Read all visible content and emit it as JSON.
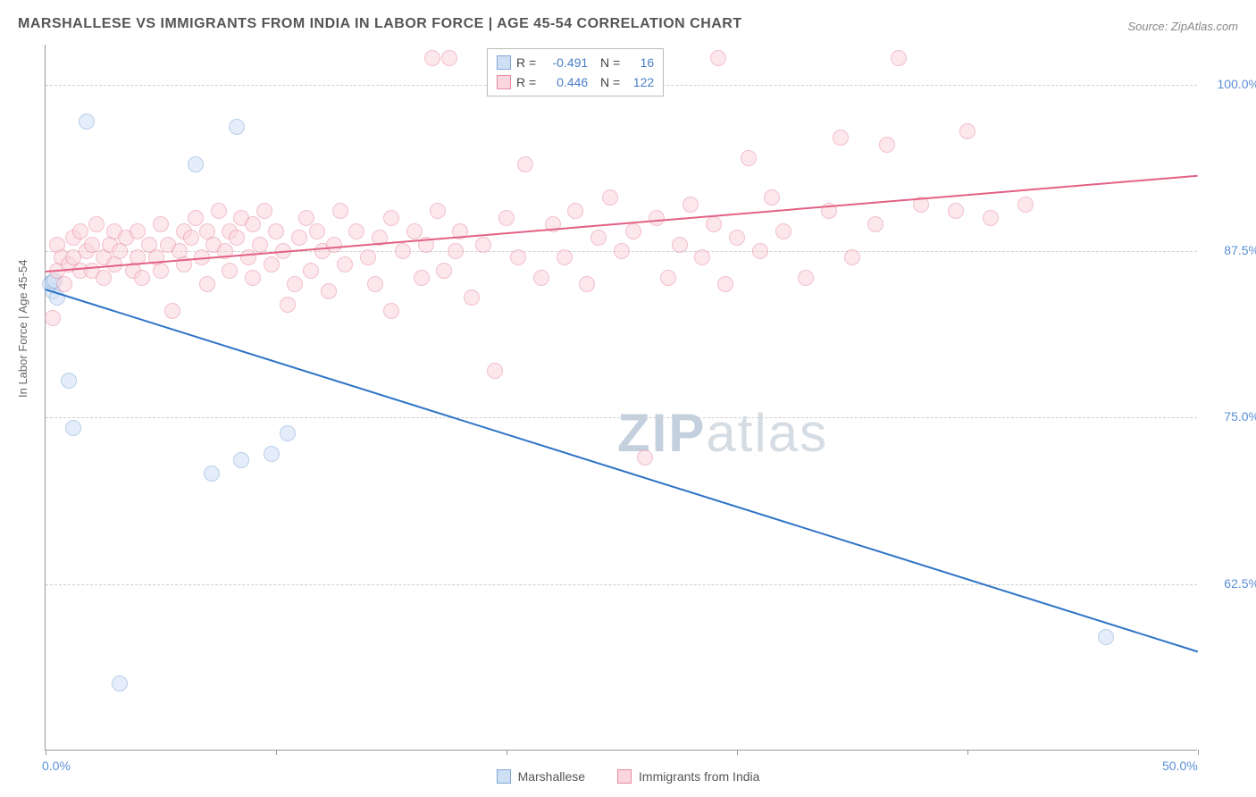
{
  "title": "MARSHALLESE VS IMMIGRANTS FROM INDIA IN LABOR FORCE | AGE 45-54 CORRELATION CHART",
  "source": "Source: ZipAtlas.com",
  "y_axis_title": "In Labor Force | Age 45-54",
  "watermark_bold": "ZIP",
  "watermark_light": "atlas",
  "chart": {
    "type": "scatter",
    "xlim": [
      0,
      50
    ],
    "ylim": [
      50,
      103
    ],
    "x_ticks": [
      0,
      10,
      20,
      30,
      40,
      50
    ],
    "x_tick_labels_shown": {
      "0": "0.0%",
      "50": "50.0%"
    },
    "y_ticks": [
      62.5,
      75.0,
      87.5,
      100.0
    ],
    "y_tick_labels": [
      "62.5%",
      "75.0%",
      "87.5%",
      "100.0%"
    ],
    "background_color": "#ffffff",
    "grid_color": "#d0d0d0",
    "point_radius": 9,
    "point_opacity": 0.55,
    "series": [
      {
        "name": "Marshallese",
        "color_fill": "#cfe0f5",
        "color_stroke": "#7fa8d8",
        "line_color": "#2f74c7",
        "R": "-0.491",
        "N": "16",
        "trend": {
          "x1": 0,
          "y1": 84.7,
          "x2": 50,
          "y2": 57.5
        },
        "points": [
          [
            0.2,
            85.0
          ],
          [
            0.3,
            84.5
          ],
          [
            0.3,
            85.2
          ],
          [
            0.5,
            84.0
          ],
          [
            1.8,
            97.2
          ],
          [
            1.0,
            77.8
          ],
          [
            1.2,
            74.2
          ],
          [
            3.2,
            55.0
          ],
          [
            6.5,
            94.0
          ],
          [
            8.3,
            96.8
          ],
          [
            8.5,
            71.8
          ],
          [
            9.8,
            72.3
          ],
          [
            10.5,
            73.8
          ],
          [
            7.2,
            70.8
          ],
          [
            46.0,
            58.5
          ],
          [
            0.4,
            85.3
          ]
        ]
      },
      {
        "name": "Immigrants from India",
        "color_fill": "#fbd5df",
        "color_stroke": "#e88ba3",
        "line_color": "#e26184",
        "R": "0.446",
        "N": "122",
        "trend": {
          "x1": 0,
          "y1": 86.0,
          "x2": 50,
          "y2": 93.2
        },
        "points": [
          [
            0.3,
            82.5
          ],
          [
            0.5,
            86.0
          ],
          [
            0.5,
            88.0
          ],
          [
            0.7,
            87.0
          ],
          [
            0.8,
            85.0
          ],
          [
            1.0,
            86.5
          ],
          [
            1.2,
            88.5
          ],
          [
            1.2,
            87.0
          ],
          [
            1.5,
            86.0
          ],
          [
            1.5,
            89.0
          ],
          [
            1.8,
            87.5
          ],
          [
            2.0,
            88.0
          ],
          [
            2.0,
            86.0
          ],
          [
            2.2,
            89.5
          ],
          [
            2.5,
            87.0
          ],
          [
            2.5,
            85.5
          ],
          [
            2.8,
            88.0
          ],
          [
            3.0,
            89.0
          ],
          [
            3.0,
            86.5
          ],
          [
            3.2,
            87.5
          ],
          [
            3.5,
            88.5
          ],
          [
            3.8,
            86.0
          ],
          [
            4.0,
            89.0
          ],
          [
            4.0,
            87.0
          ],
          [
            4.2,
            85.5
          ],
          [
            4.5,
            88.0
          ],
          [
            4.8,
            87.0
          ],
          [
            5.0,
            89.5
          ],
          [
            5.0,
            86.0
          ],
          [
            5.3,
            88.0
          ],
          [
            5.5,
            83.0
          ],
          [
            5.8,
            87.5
          ],
          [
            6.0,
            89.0
          ],
          [
            6.0,
            86.5
          ],
          [
            6.3,
            88.5
          ],
          [
            6.5,
            90.0
          ],
          [
            6.8,
            87.0
          ],
          [
            7.0,
            89.0
          ],
          [
            7.0,
            85.0
          ],
          [
            7.3,
            88.0
          ],
          [
            7.5,
            90.5
          ],
          [
            7.8,
            87.5
          ],
          [
            8.0,
            89.0
          ],
          [
            8.0,
            86.0
          ],
          [
            8.3,
            88.5
          ],
          [
            8.5,
            90.0
          ],
          [
            8.8,
            87.0
          ],
          [
            9.0,
            89.5
          ],
          [
            9.0,
            85.5
          ],
          [
            9.3,
            88.0
          ],
          [
            9.5,
            90.5
          ],
          [
            9.8,
            86.5
          ],
          [
            10.0,
            89.0
          ],
          [
            10.3,
            87.5
          ],
          [
            10.5,
            83.5
          ],
          [
            10.8,
            85.0
          ],
          [
            11.0,
            88.5
          ],
          [
            11.3,
            90.0
          ],
          [
            11.5,
            86.0
          ],
          [
            11.8,
            89.0
          ],
          [
            12.0,
            87.5
          ],
          [
            12.3,
            84.5
          ],
          [
            12.5,
            88.0
          ],
          [
            12.8,
            90.5
          ],
          [
            13.0,
            86.5
          ],
          [
            13.5,
            89.0
          ],
          [
            14.0,
            87.0
          ],
          [
            14.3,
            85.0
          ],
          [
            14.5,
            88.5
          ],
          [
            15.0,
            90.0
          ],
          [
            15.0,
            83.0
          ],
          [
            15.5,
            87.5
          ],
          [
            16.0,
            89.0
          ],
          [
            16.3,
            85.5
          ],
          [
            16.5,
            88.0
          ],
          [
            16.8,
            102.0
          ],
          [
            17.0,
            90.5
          ],
          [
            17.3,
            86.0
          ],
          [
            17.5,
            102.0
          ],
          [
            17.8,
            87.5
          ],
          [
            18.0,
            89.0
          ],
          [
            18.5,
            84.0
          ],
          [
            19.0,
            88.0
          ],
          [
            19.5,
            78.5
          ],
          [
            20.0,
            90.0
          ],
          [
            20.5,
            87.0
          ],
          [
            20.8,
            94.0
          ],
          [
            21.5,
            85.5
          ],
          [
            22.0,
            89.5
          ],
          [
            22.5,
            87.0
          ],
          [
            23.0,
            90.5
          ],
          [
            23.5,
            85.0
          ],
          [
            24.0,
            88.5
          ],
          [
            24.5,
            91.5
          ],
          [
            25.0,
            87.5
          ],
          [
            25.5,
            89.0
          ],
          [
            26.0,
            72.0
          ],
          [
            26.5,
            90.0
          ],
          [
            27.0,
            85.5
          ],
          [
            27.5,
            88.0
          ],
          [
            28.0,
            91.0
          ],
          [
            28.5,
            87.0
          ],
          [
            29.0,
            89.5
          ],
          [
            29.2,
            102.0
          ],
          [
            29.5,
            85.0
          ],
          [
            30.0,
            88.5
          ],
          [
            30.5,
            94.5
          ],
          [
            31.0,
            87.5
          ],
          [
            31.5,
            91.5
          ],
          [
            32.0,
            89.0
          ],
          [
            33.0,
            85.5
          ],
          [
            34.0,
            90.5
          ],
          [
            34.5,
            96.0
          ],
          [
            35.0,
            87.0
          ],
          [
            36.0,
            89.5
          ],
          [
            36.5,
            95.5
          ],
          [
            37.0,
            102.0
          ],
          [
            38.0,
            91.0
          ],
          [
            39.5,
            90.5
          ],
          [
            40.0,
            96.5
          ],
          [
            41.0,
            90.0
          ],
          [
            42.5,
            91.0
          ]
        ]
      }
    ]
  },
  "legend_bottom": [
    {
      "label": "Marshallese",
      "fill": "#cfe0f5",
      "stroke": "#7fa8d8"
    },
    {
      "label": "Immigrants from India",
      "fill": "#fbd5df",
      "stroke": "#e88ba3"
    }
  ]
}
